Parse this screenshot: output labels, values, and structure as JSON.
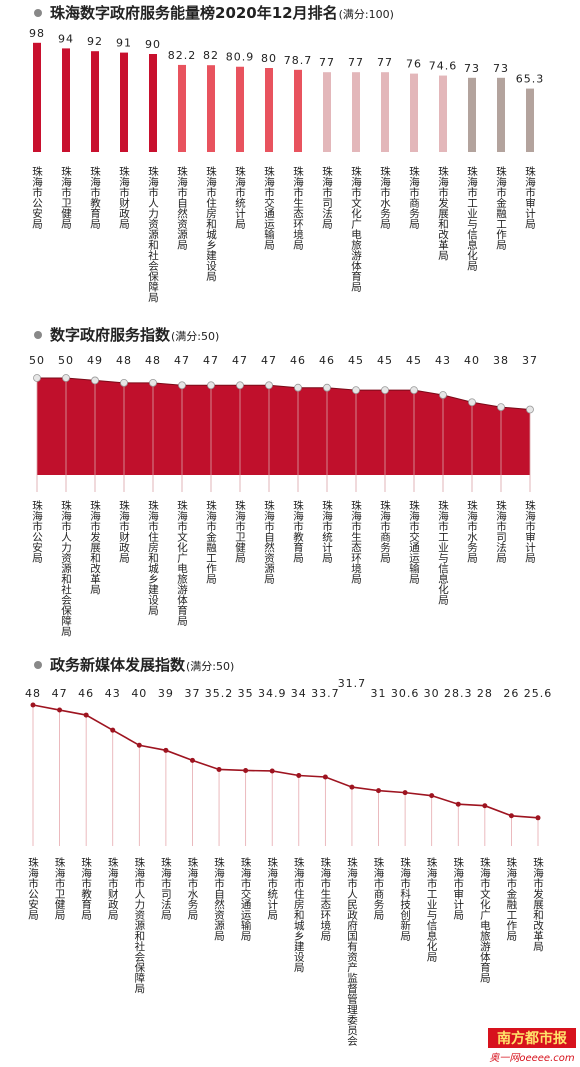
{
  "chart_data": [
    {
      "type": "bar",
      "title": "珠海数字政府服务能量榜2020年12月排名",
      "subtitle": "(满分:100)",
      "categories": [
        "珠海市公安局",
        "珠海市卫健局",
        "珠海市教育局",
        "珠海市财政局",
        "珠海市人力资源和社会保障局",
        "珠海市自然资源局",
        "珠海市住房和城乡建设局",
        "珠海市统计局",
        "珠海市交通运输局",
        "珠海市生态环境局",
        "珠海市司法局",
        "珠海市文化广电旅游体育局",
        "珠海市水务局",
        "珠海市商务局",
        "珠海市发展和改革局",
        "珠海市工业与信息化局",
        "珠海市金融工作局",
        "珠海市审计局"
      ],
      "values": [
        98,
        94,
        92,
        91,
        90,
        82.2,
        82,
        80.9,
        80,
        78.7,
        77,
        77,
        77,
        76,
        74.6,
        73,
        73,
        65.3
      ],
      "colors": [
        "#c8102e",
        "#c8102e",
        "#c8102e",
        "#c8102e",
        "#c8102e",
        "#e8535e",
        "#e8535e",
        "#e8535e",
        "#e8535e",
        "#e8535e",
        "#e3b7ba",
        "#e3b7ba",
        "#e3b7ba",
        "#e3b7ba",
        "#e3b7ba",
        "#b3a39d",
        "#b3a39d",
        "#b3a39d"
      ],
      "ylim": [
        20,
        100
      ]
    },
    {
      "type": "area",
      "title": "数字政府服务指数",
      "subtitle": "(满分:50)",
      "categories": [
        "珠海市公安局",
        "珠海市人力资源和社会保障局",
        "珠海市发展和改革局",
        "珠海市财政局",
        "珠海市住房和城乡建设局",
        "珠海市文化广电旅游体育局",
        "珠海市金融工作局",
        "珠海市卫健局",
        "珠海市自然资源局",
        "珠海市教育局",
        "珠海市统计局",
        "珠海市生态环境局",
        "珠海市商务局",
        "珠海市交通运输局",
        "珠海市工业与信息化局",
        "珠海市水务局",
        "珠海市司法局",
        "珠海市审计局"
      ],
      "values": [
        50,
        50,
        49,
        48,
        48,
        47,
        47,
        47,
        47,
        46,
        46,
        45,
        45,
        45,
        43,
        40,
        38,
        37
      ],
      "color": "#c0102c",
      "ylim": [
        10,
        50
      ]
    },
    {
      "type": "line",
      "title": "政务新媒体发展指数",
      "subtitle": "(满分:50)",
      "categories": [
        "珠海市公安局",
        "珠海市卫健局",
        "珠海市教育局",
        "珠海市财政局",
        "珠海市人力资源和社会保障局",
        "珠海市司法局",
        "珠海市水务局",
        "珠海市自然资源局",
        "珠海市交通运输局",
        "珠海市统计局",
        "珠海市住房和城乡建设局",
        "珠海市生态环境局",
        "珠海市人民政府国有资产监督管理委员会",
        "珠海市商务局",
        "珠海市科技创新局",
        "珠海市工业与信息化局",
        "珠海市审计局",
        "珠海市文化广电旅游体育局",
        "珠海市金融工作局",
        "珠海市发展和改革局"
      ],
      "values": [
        48,
        47,
        46,
        43,
        40,
        39,
        37,
        35.2,
        35,
        34.9,
        34,
        33.7,
        31.7,
        31,
        30.6,
        30,
        28.3,
        28,
        26,
        25.6
      ],
      "color": "#9e1420",
      "ylim": [
        20,
        48
      ]
    }
  ],
  "footer": {
    "brand": "南方都市报",
    "site": "奥一网oeeee.com"
  }
}
